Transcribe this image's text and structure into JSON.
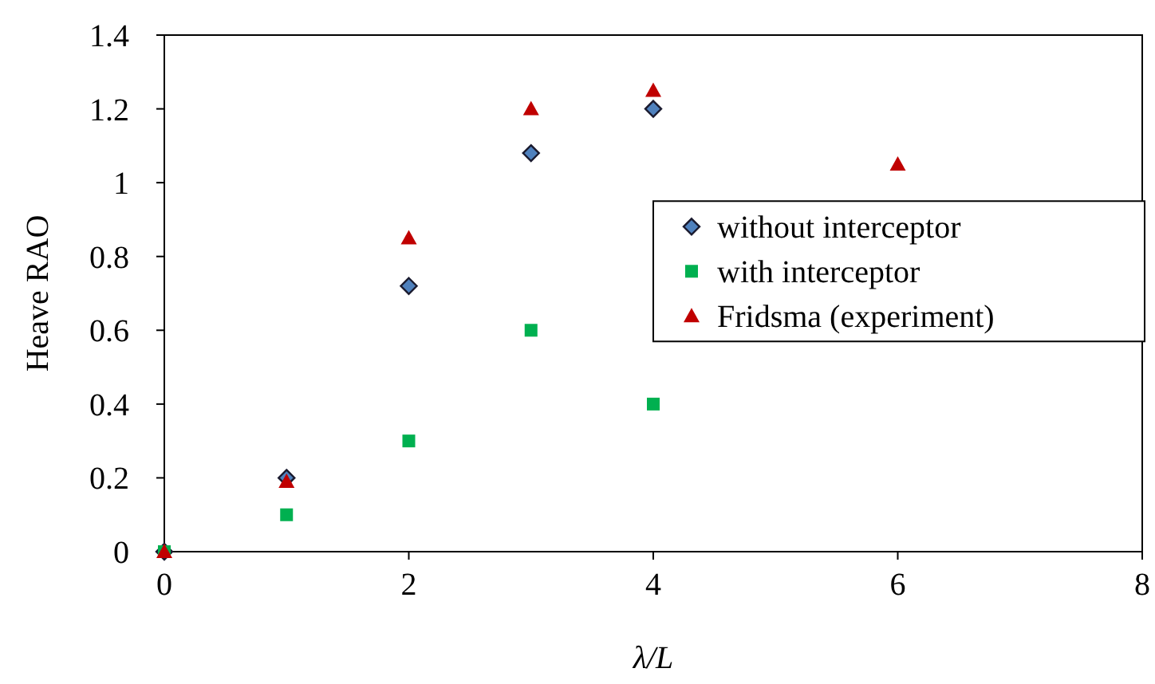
{
  "chart_data": {
    "type": "scatter",
    "xlabel": "λ/L",
    "ylabel": "Heave RAO",
    "xlim": [
      0,
      8
    ],
    "xticks": [
      0,
      2,
      4,
      6,
      8
    ],
    "ylim": [
      0,
      1.4
    ],
    "yticks": [
      0,
      0.2,
      0.4,
      0.6,
      0.8,
      1,
      1.2,
      1.4
    ],
    "grid": false,
    "legend": "right",
    "series": [
      {
        "name": "without interceptor",
        "color": "#4f81bd",
        "marker": "diamond",
        "x": [
          0,
          1,
          2,
          3,
          4
        ],
        "values": [
          0,
          0.2,
          0.72,
          1.08,
          1.2
        ]
      },
      {
        "name": "with interceptor",
        "color": "#00b050",
        "marker": "square",
        "x": [
          0,
          1,
          2,
          3,
          4
        ],
        "values": [
          0,
          0.1,
          0.3,
          0.6,
          0.4
        ]
      },
      {
        "name": "Fridsma (experiment)",
        "color": "#c00000",
        "marker": "triangle",
        "x": [
          0,
          1,
          2,
          3,
          4,
          6
        ],
        "values": [
          0,
          0.19,
          0.85,
          1.2,
          1.25,
          1.05
        ]
      }
    ]
  }
}
